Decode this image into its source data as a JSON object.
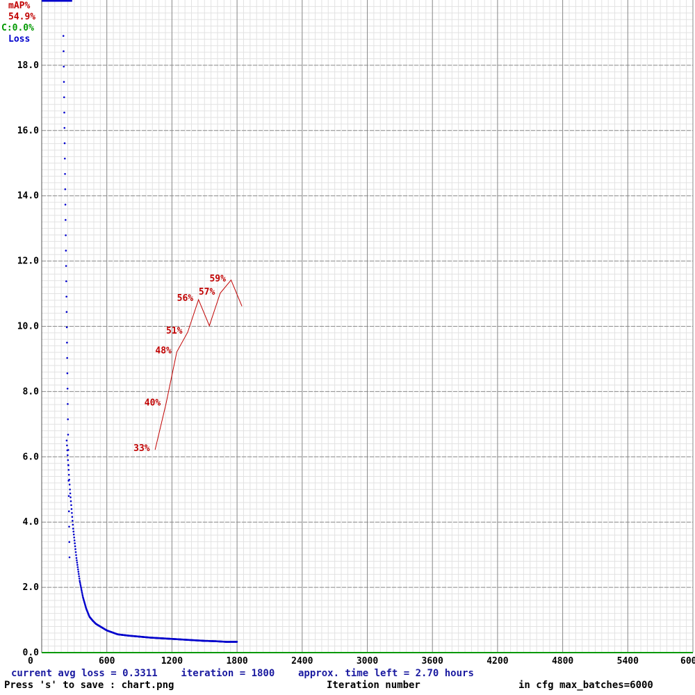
{
  "chart_data": {
    "type": "line",
    "legend": {
      "map_label": "mAP%",
      "map_value": "54.9%",
      "c_label": "C:0.0%",
      "loss_label": "Loss"
    },
    "x_ticks": [
      "0",
      "600",
      "1200",
      "1800",
      "2400",
      "3000",
      "3600",
      "4200",
      "4800",
      "5400",
      "6000"
    ],
    "y_ticks": [
      "0.0",
      "2.0",
      "4.0",
      "6.0",
      "8.0",
      "10.0",
      "12.0",
      "14.0",
      "16.0",
      "18.0"
    ],
    "xlim": [
      0,
      6000
    ],
    "ylim": [
      0,
      20
    ],
    "grid": true,
    "loss_series": {
      "name": "Loss",
      "color": "#0000cc",
      "x": [
        1,
        50,
        100,
        150,
        200,
        230,
        260,
        290,
        320,
        350,
        380,
        410,
        440,
        470,
        500,
        550,
        600,
        700,
        800,
        900,
        1000,
        1100,
        1200,
        1300,
        1400,
        1500,
        1600,
        1700,
        1800
      ],
      "y": [
        20.0,
        18.9,
        15.0,
        11.0,
        8.3,
        6.5,
        5.0,
        3.8,
        2.9,
        2.2,
        1.7,
        1.35,
        1.1,
        0.98,
        0.88,
        0.78,
        0.68,
        0.56,
        0.52,
        0.49,
        0.46,
        0.44,
        0.42,
        0.4,
        0.38,
        0.36,
        0.35,
        0.33,
        0.3311
      ]
    },
    "map_series": {
      "name": "mAP%",
      "color": "#c00000",
      "x": [
        1000,
        1100,
        1200,
        1300,
        1400,
        1500,
        1600,
        1700,
        1800
      ],
      "y": [
        33,
        40,
        48,
        51,
        56,
        52,
        57,
        59,
        55
      ],
      "labels": [
        {
          "x": 1000,
          "text": "33%"
        },
        {
          "x": 1100,
          "text": "40%"
        },
        {
          "x": 1200,
          "text": "48%"
        },
        {
          "x": 1300,
          "text": "51%"
        },
        {
          "x": 1400,
          "text": "56%"
        },
        {
          "x": 1600,
          "text": "57%"
        },
        {
          "x": 1700,
          "text": "59%"
        }
      ]
    }
  },
  "footer": {
    "status_line": "current avg loss = 0.3311    iteration = 1800    approx. time left = 2.70 hours",
    "save_hint": "Press 's' to save : chart.png",
    "x_axis_title": "Iteration number",
    "max_batches": "in cfg max_batches=6000"
  }
}
